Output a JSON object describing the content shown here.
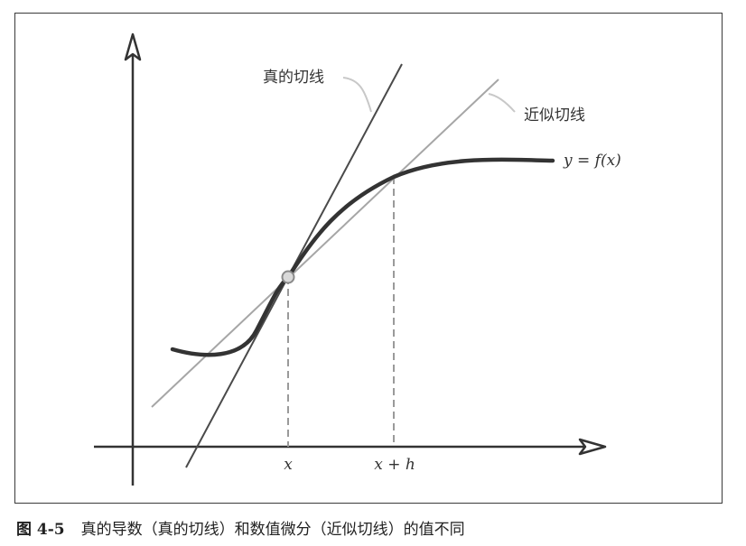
{
  "labels": {
    "true_tangent": "真的切线",
    "approx_tangent": "近似切线",
    "curve": "y = f(x)",
    "x_tick": "x",
    "xh_tick": "x + h"
  },
  "caption": {
    "figure_number": "图 4-5",
    "text": "真的导数（真的切线）和数值微分（近似切线）的值不同"
  },
  "colors": {
    "curve": "#333333",
    "true_tangent": "#4a4a4a",
    "approx_tangent": "#a6a6a6",
    "axes": "#333333",
    "guides": "#9a9a9a",
    "point_fill": "#d9d9d9"
  }
}
